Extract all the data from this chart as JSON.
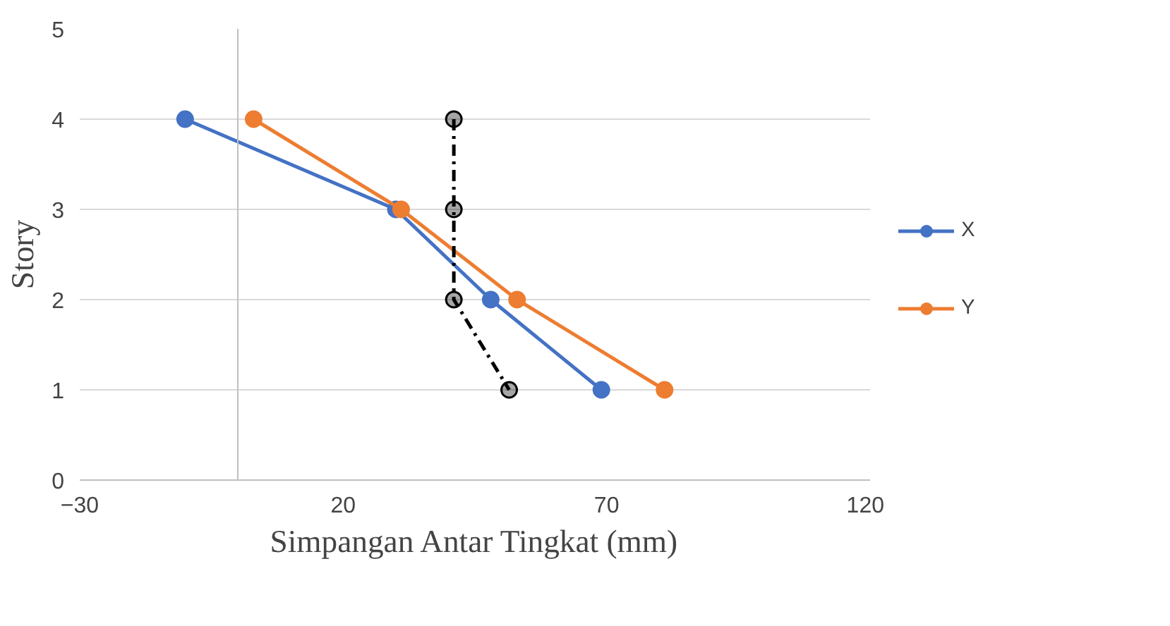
{
  "chart_data": {
    "type": "line",
    "xlabel": "Simpangan Antar Tingkat (mm)",
    "ylabel": "Story",
    "xlim": [
      -30,
      120
    ],
    "xticks": [
      -30,
      20,
      70,
      120
    ],
    "ylim": [
      0,
      5
    ],
    "yticks": [
      0,
      1,
      2,
      3,
      4,
      5
    ],
    "grid": "y",
    "legend": "right",
    "marker": "circle",
    "series": [
      {
        "name": "X",
        "color": "#4472c4",
        "x": [
          -10,
          30,
          48,
          69
        ],
        "values": [
          4,
          3,
          2,
          1
        ]
      },
      {
        "name": "Y",
        "color": "#ed7d31",
        "x": [
          3,
          31,
          53,
          81
        ],
        "values": [
          4,
          3,
          2,
          1
        ]
      },
      {
        "color": "#000000",
        "x": [
          41,
          41,
          41,
          51.5
        ],
        "values": [
          4,
          3,
          2,
          1
        ],
        "line_style": "dashed"
      }
    ]
  }
}
